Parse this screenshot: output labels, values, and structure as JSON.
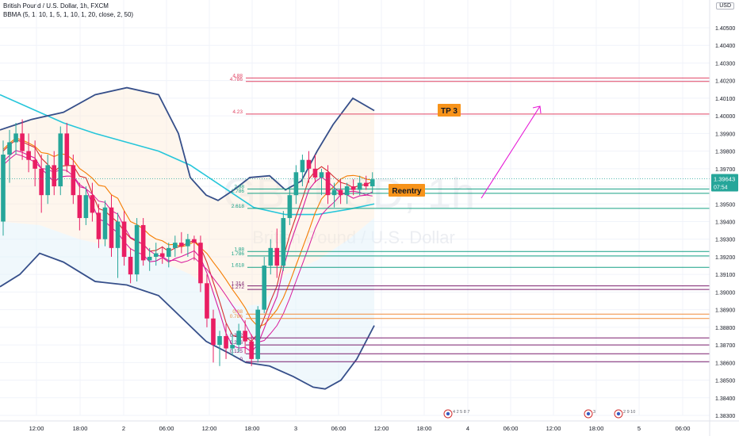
{
  "header": {
    "title": "British Pound / U.S. Dollar, 1h, FXCM",
    "indicator": "BBMA (5, 1, 10, 1, 5, 1, 10, 1, 20, close, 2, 50)",
    "currency": "USD"
  },
  "watermark": {
    "symbol": "GBPUSD, 1h",
    "name": "British Pound / U.S. Dollar"
  },
  "annotations": {
    "tp_label": "TP 3",
    "reentry_label": "Reentry"
  },
  "colors": {
    "up": "#26a69a",
    "down": "#e91e63",
    "bb": "#364f8a",
    "ma50": "#26c6da",
    "ma_red": "#d32f2f",
    "ma_orange": "#f57c00",
    "ma_magenta": "#d81b9c",
    "fib_red": "#e04565",
    "fib_green": "#16a085",
    "fib_purple": "#7b1f6e",
    "fib_orange": "#f08c3a",
    "label_orange": "#f7931a",
    "arrow": "#e619d6",
    "grid": "#f0f3fa"
  },
  "chart_data": {
    "type": "candlestick",
    "symbol": "GBPUSD",
    "timeframe": "1h",
    "y_ticks": [
      "1.38300",
      "1.38400",
      "1.38500",
      "1.38600",
      "1.38700",
      "1.38800",
      "1.38900",
      "1.39000",
      "1.39100",
      "1.39200",
      "1.39300",
      "1.39400",
      "1.39500",
      "1.39600",
      "1.39700",
      "1.39800",
      "1.39900",
      "1.40000",
      "1.40100",
      "1.40200",
      "1.40300",
      "1.40400",
      "1.40500"
    ],
    "x_ticks": [
      "12:00",
      "18:00",
      "2",
      "06:00",
      "12:00",
      "18:00",
      "3",
      "06:00",
      "12:00",
      "18:00",
      "4",
      "06:00",
      "12:00",
      "18:00",
      "5",
      "06:00"
    ],
    "last_price": "1.39643",
    "countdown": "07:54",
    "candles": [
      {
        "o": 1.394,
        "h": 1.3986,
        "l": 1.3932,
        "c": 1.3978
      },
      {
        "o": 1.3978,
        "h": 1.3992,
        "l": 1.3962,
        "c": 1.3985
      },
      {
        "o": 1.3985,
        "h": 1.3996,
        "l": 1.3978,
        "c": 1.399
      },
      {
        "o": 1.399,
        "h": 1.3998,
        "l": 1.3975,
        "c": 1.398
      },
      {
        "o": 1.398,
        "h": 1.399,
        "l": 1.3968,
        "c": 1.3975
      },
      {
        "o": 1.3975,
        "h": 1.3986,
        "l": 1.396,
        "c": 1.397
      },
      {
        "o": 1.397,
        "h": 1.3978,
        "l": 1.3945,
        "c": 1.3955
      },
      {
        "o": 1.3955,
        "h": 1.3978,
        "l": 1.395,
        "c": 1.3972
      },
      {
        "o": 1.3972,
        "h": 1.398,
        "l": 1.3955,
        "c": 1.396
      },
      {
        "o": 1.396,
        "h": 1.3994,
        "l": 1.3955,
        "c": 1.399
      },
      {
        "o": 1.399,
        "h": 1.3996,
        "l": 1.3968,
        "c": 1.3972
      },
      {
        "o": 1.3972,
        "h": 1.3978,
        "l": 1.395,
        "c": 1.3955
      },
      {
        "o": 1.3955,
        "h": 1.3962,
        "l": 1.3935,
        "c": 1.3942
      },
      {
        "o": 1.3942,
        "h": 1.396,
        "l": 1.3938,
        "c": 1.3955
      },
      {
        "o": 1.3955,
        "h": 1.3962,
        "l": 1.394,
        "c": 1.3945
      },
      {
        "o": 1.3945,
        "h": 1.395,
        "l": 1.3925,
        "c": 1.393
      },
      {
        "o": 1.393,
        "h": 1.3952,
        "l": 1.3926,
        "c": 1.3948
      },
      {
        "o": 1.3948,
        "h": 1.3955,
        "l": 1.392,
        "c": 1.3925
      },
      {
        "o": 1.3925,
        "h": 1.3945,
        "l": 1.3908,
        "c": 1.394
      },
      {
        "o": 1.394,
        "h": 1.3946,
        "l": 1.3915,
        "c": 1.392
      },
      {
        "o": 1.392,
        "h": 1.3925,
        "l": 1.3905,
        "c": 1.391
      },
      {
        "o": 1.391,
        "h": 1.3942,
        "l": 1.3906,
        "c": 1.3938
      },
      {
        "o": 1.3938,
        "h": 1.3942,
        "l": 1.3915,
        "c": 1.3918
      },
      {
        "o": 1.3918,
        "h": 1.3925,
        "l": 1.3912,
        "c": 1.392
      },
      {
        "o": 1.392,
        "h": 1.3928,
        "l": 1.3915,
        "c": 1.3922
      },
      {
        "o": 1.3922,
        "h": 1.3926,
        "l": 1.3916,
        "c": 1.392
      },
      {
        "o": 1.392,
        "h": 1.3928,
        "l": 1.3914,
        "c": 1.3925
      },
      {
        "o": 1.3925,
        "h": 1.3932,
        "l": 1.392,
        "c": 1.3928
      },
      {
        "o": 1.3928,
        "h": 1.3934,
        "l": 1.3922,
        "c": 1.3926
      },
      {
        "o": 1.3926,
        "h": 1.3933,
        "l": 1.392,
        "c": 1.393
      },
      {
        "o": 1.393,
        "h": 1.3932,
        "l": 1.3918,
        "c": 1.3928
      },
      {
        "o": 1.3928,
        "h": 1.3932,
        "l": 1.39,
        "c": 1.3905
      },
      {
        "o": 1.3905,
        "h": 1.391,
        "l": 1.388,
        "c": 1.3885
      },
      {
        "o": 1.3885,
        "h": 1.389,
        "l": 1.386,
        "c": 1.387
      },
      {
        "o": 1.387,
        "h": 1.3878,
        "l": 1.3858,
        "c": 1.3875
      },
      {
        "o": 1.3875,
        "h": 1.3882,
        "l": 1.3862,
        "c": 1.3868
      },
      {
        "o": 1.3868,
        "h": 1.3876,
        "l": 1.3864,
        "c": 1.387
      },
      {
        "o": 1.387,
        "h": 1.3882,
        "l": 1.3866,
        "c": 1.3878
      },
      {
        "o": 1.3878,
        "h": 1.3884,
        "l": 1.3865,
        "c": 1.3872
      },
      {
        "o": 1.3872,
        "h": 1.3876,
        "l": 1.3858,
        "c": 1.3862
      },
      {
        "o": 1.3862,
        "h": 1.3892,
        "l": 1.386,
        "c": 1.389
      },
      {
        "o": 1.389,
        "h": 1.392,
        "l": 1.3888,
        "c": 1.3915
      },
      {
        "o": 1.3915,
        "h": 1.393,
        "l": 1.391,
        "c": 1.3925
      },
      {
        "o": 1.3925,
        "h": 1.3936,
        "l": 1.3908,
        "c": 1.3915
      },
      {
        "o": 1.3915,
        "h": 1.3946,
        "l": 1.3912,
        "c": 1.3942
      },
      {
        "o": 1.3942,
        "h": 1.396,
        "l": 1.3938,
        "c": 1.3955
      },
      {
        "o": 1.3955,
        "h": 1.3972,
        "l": 1.395,
        "c": 1.3968
      },
      {
        "o": 1.3968,
        "h": 1.3978,
        "l": 1.396,
        "c": 1.3975
      },
      {
        "o": 1.3975,
        "h": 1.398,
        "l": 1.3962,
        "c": 1.397
      },
      {
        "o": 1.397,
        "h": 1.3978,
        "l": 1.3962,
        "c": 1.3965
      },
      {
        "o": 1.3965,
        "h": 1.397,
        "l": 1.3955,
        "c": 1.3968
      },
      {
        "o": 1.3968,
        "h": 1.3972,
        "l": 1.395,
        "c": 1.3955
      },
      {
        "o": 1.3955,
        "h": 1.3962,
        "l": 1.3948,
        "c": 1.3958
      },
      {
        "o": 1.3958,
        "h": 1.3964,
        "l": 1.395,
        "c": 1.3955
      },
      {
        "o": 1.3955,
        "h": 1.3962,
        "l": 1.395,
        "c": 1.396
      },
      {
        "o": 1.396,
        "h": 1.3964,
        "l": 1.3955,
        "c": 1.3958
      },
      {
        "o": 1.3958,
        "h": 1.3966,
        "l": 1.3955,
        "c": 1.3962
      },
      {
        "o": 1.3962,
        "h": 1.3966,
        "l": 1.3958,
        "c": 1.396
      },
      {
        "o": 1.396,
        "h": 1.3968,
        "l": 1.3956,
        "c": 1.3964
      }
    ],
    "fib_levels": [
      {
        "label": "4.88",
        "price": 1.40215,
        "color": "fib_red"
      },
      {
        "label": "4.786",
        "price": 1.40195,
        "color": "fib_red"
      },
      {
        "label": "4.23",
        "price": 1.4001,
        "color": "fib_red"
      },
      {
        "label": "2.88",
        "price": 1.39585,
        "color": "fib_green"
      },
      {
        "label": "2.786",
        "price": 1.3956,
        "color": "fib_green"
      },
      {
        "label": "2.618",
        "price": 1.39475,
        "color": "fib_green"
      },
      {
        "label": "1.88",
        "price": 1.3923,
        "color": "fib_green"
      },
      {
        "label": "1.786",
        "price": 1.39205,
        "color": "fib_green"
      },
      {
        "label": "1.618",
        "price": 1.3914,
        "color": "fib_green"
      },
      {
        "label": "1.314",
        "price": 1.39035,
        "color": "fib_purple"
      },
      {
        "label": "1.272",
        "price": 1.39015,
        "color": "fib_purple"
      },
      {
        "label": "0.88",
        "price": 1.38875,
        "color": "fib_orange"
      },
      {
        "label": "0.786",
        "price": 1.3885,
        "color": "fib_orange"
      },
      {
        "label": "0.382",
        "price": 1.3874,
        "color": "fib_purple"
      },
      {
        "label": "0.236",
        "price": 1.387,
        "color": "fib_purple"
      },
      {
        "label": "0.125",
        "price": 1.3865,
        "color": "fib_purple"
      },
      {
        "label": "0",
        "price": 1.38605,
        "color": "fib_purple"
      }
    ],
    "event_badges": [
      {
        "label": "4 2 5 8 7"
      },
      {
        "label": "3"
      },
      {
        "label": "2 9 10"
      }
    ]
  }
}
